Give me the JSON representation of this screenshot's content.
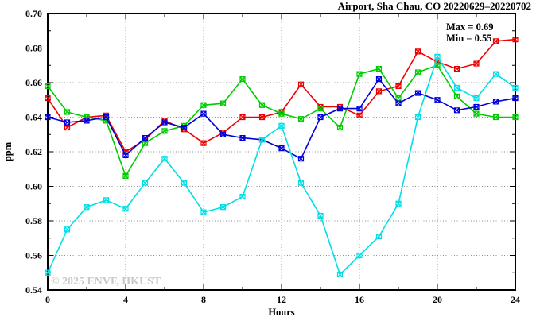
{
  "title": "Airport, Sha Chau, CO 20220629–20220702",
  "annotations": {
    "max_label": "Max = 0.69",
    "min_label": "Min = 0.55"
  },
  "watermark": "© 2025 ENVF, HKUST",
  "axes": {
    "xlabel": "Hours",
    "ylabel": "ppm"
  },
  "chart_data": {
    "type": "line",
    "title": "Airport, Sha Chau, CO 20220629–20220702",
    "xlabel": "Hours",
    "ylabel": "ppm",
    "xlim": [
      0,
      24
    ],
    "ylim": [
      0.54,
      0.7
    ],
    "x_major_ticks": [
      0,
      4,
      8,
      12,
      16,
      20,
      24
    ],
    "x_minor_step": 2,
    "y_major_step": 0.02,
    "y_minor_step": 0.01,
    "grid": "dotted",
    "legend_position": "none",
    "max_value": 0.69,
    "min_value": 0.55,
    "x": [
      0,
      1,
      2,
      3,
      4,
      5,
      6,
      7,
      8,
      9,
      10,
      11,
      12,
      13,
      14,
      15,
      16,
      17,
      18,
      19,
      20,
      21,
      22,
      23,
      24
    ],
    "series": [
      {
        "name": "red",
        "color": "#ee0000",
        "values": [
          0.651,
          0.634,
          0.64,
          0.641,
          0.62,
          0.627,
          0.638,
          0.633,
          0.625,
          0.631,
          0.64,
          0.64,
          0.643,
          0.659,
          0.646,
          0.646,
          0.641,
          0.655,
          0.658,
          0.678,
          0.672,
          0.668,
          0.671,
          0.684,
          0.685
        ]
      },
      {
        "name": "green",
        "color": "#00cc00",
        "values": [
          0.658,
          0.643,
          0.64,
          0.638,
          0.606,
          0.625,
          0.632,
          0.635,
          0.647,
          0.648,
          0.662,
          0.647,
          0.642,
          0.639,
          0.645,
          0.634,
          0.665,
          0.668,
          0.651,
          0.666,
          0.67,
          0.652,
          0.642,
          0.64,
          0.64
        ]
      },
      {
        "name": "blue",
        "color": "#0000dd",
        "values": [
          0.64,
          0.637,
          0.638,
          0.64,
          0.618,
          0.628,
          0.637,
          0.634,
          0.642,
          0.63,
          0.628,
          0.627,
          0.622,
          0.616,
          0.64,
          0.645,
          0.645,
          0.662,
          0.648,
          0.654,
          0.65,
          0.644,
          0.646,
          0.649,
          0.651
        ]
      },
      {
        "name": "cyan",
        "color": "#00e0e6",
        "values": [
          0.55,
          0.575,
          0.588,
          0.592,
          0.587,
          0.602,
          0.616,
          0.602,
          0.585,
          0.588,
          0.594,
          0.627,
          0.635,
          0.602,
          0.583,
          0.549,
          0.56,
          0.571,
          0.59,
          0.64,
          0.675,
          0.657,
          0.651,
          0.665,
          0.657
        ]
      }
    ]
  }
}
